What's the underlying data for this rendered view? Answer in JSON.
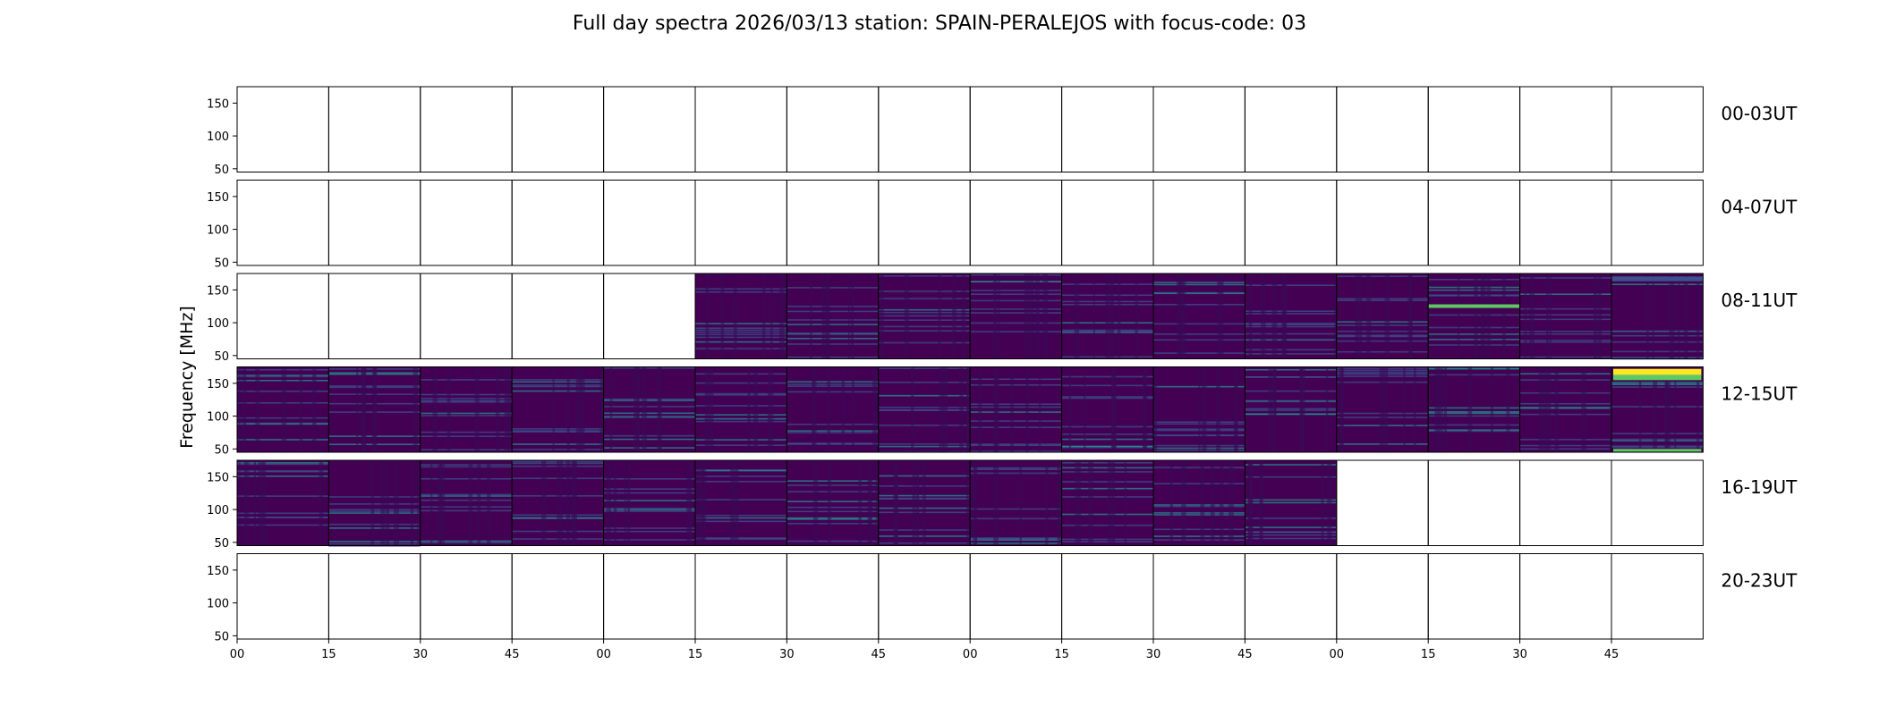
{
  "chart_data": {
    "type": "heatmap",
    "title": "Full day spectra 2026/03/13 station: SPAIN-PERALEJOS with focus-code: 03",
    "ylabel": "Frequency [MHz]",
    "ylim": [
      45,
      175
    ],
    "y_ticks": [
      "50",
      "100",
      "150"
    ],
    "x_tick_labels": [
      "00",
      "15",
      "30",
      "45",
      "00",
      "15",
      "30",
      "45",
      "00",
      "15",
      "30",
      "45",
      "00",
      "15",
      "30",
      "45"
    ],
    "colormap": [
      "#440154",
      "#3b528b",
      "#21918c",
      "#5ec962",
      "#fde725"
    ],
    "rows": [
      {
        "label": "00-03UT",
        "panels": [
          0,
          0,
          0,
          0,
          0,
          0,
          0,
          0,
          0,
          0,
          0,
          0,
          0,
          0,
          0,
          0
        ]
      },
      {
        "label": "04-07UT",
        "panels": [
          0,
          0,
          0,
          0,
          0,
          0,
          0,
          0,
          0,
          0,
          0,
          0,
          0,
          0,
          0,
          0
        ]
      },
      {
        "label": "08-11UT",
        "panels": [
          0,
          0,
          0,
          0,
          0,
          1,
          1,
          1,
          1,
          1,
          1,
          1,
          1,
          1,
          1,
          1
        ]
      },
      {
        "label": "12-15UT",
        "panels": [
          1,
          1,
          1,
          1,
          1,
          1,
          1,
          1,
          1,
          1,
          1,
          1,
          1,
          1,
          1,
          1
        ]
      },
      {
        "label": "16-19UT",
        "panels": [
          1,
          1,
          1,
          1,
          1,
          1,
          1,
          1,
          1,
          1,
          1,
          1,
          0,
          0,
          0,
          0
        ]
      },
      {
        "label": "20-23UT",
        "panels": [
          0,
          0,
          0,
          0,
          0,
          0,
          0,
          0,
          0,
          0,
          0,
          0,
          0,
          0,
          0,
          0
        ]
      }
    ]
  }
}
